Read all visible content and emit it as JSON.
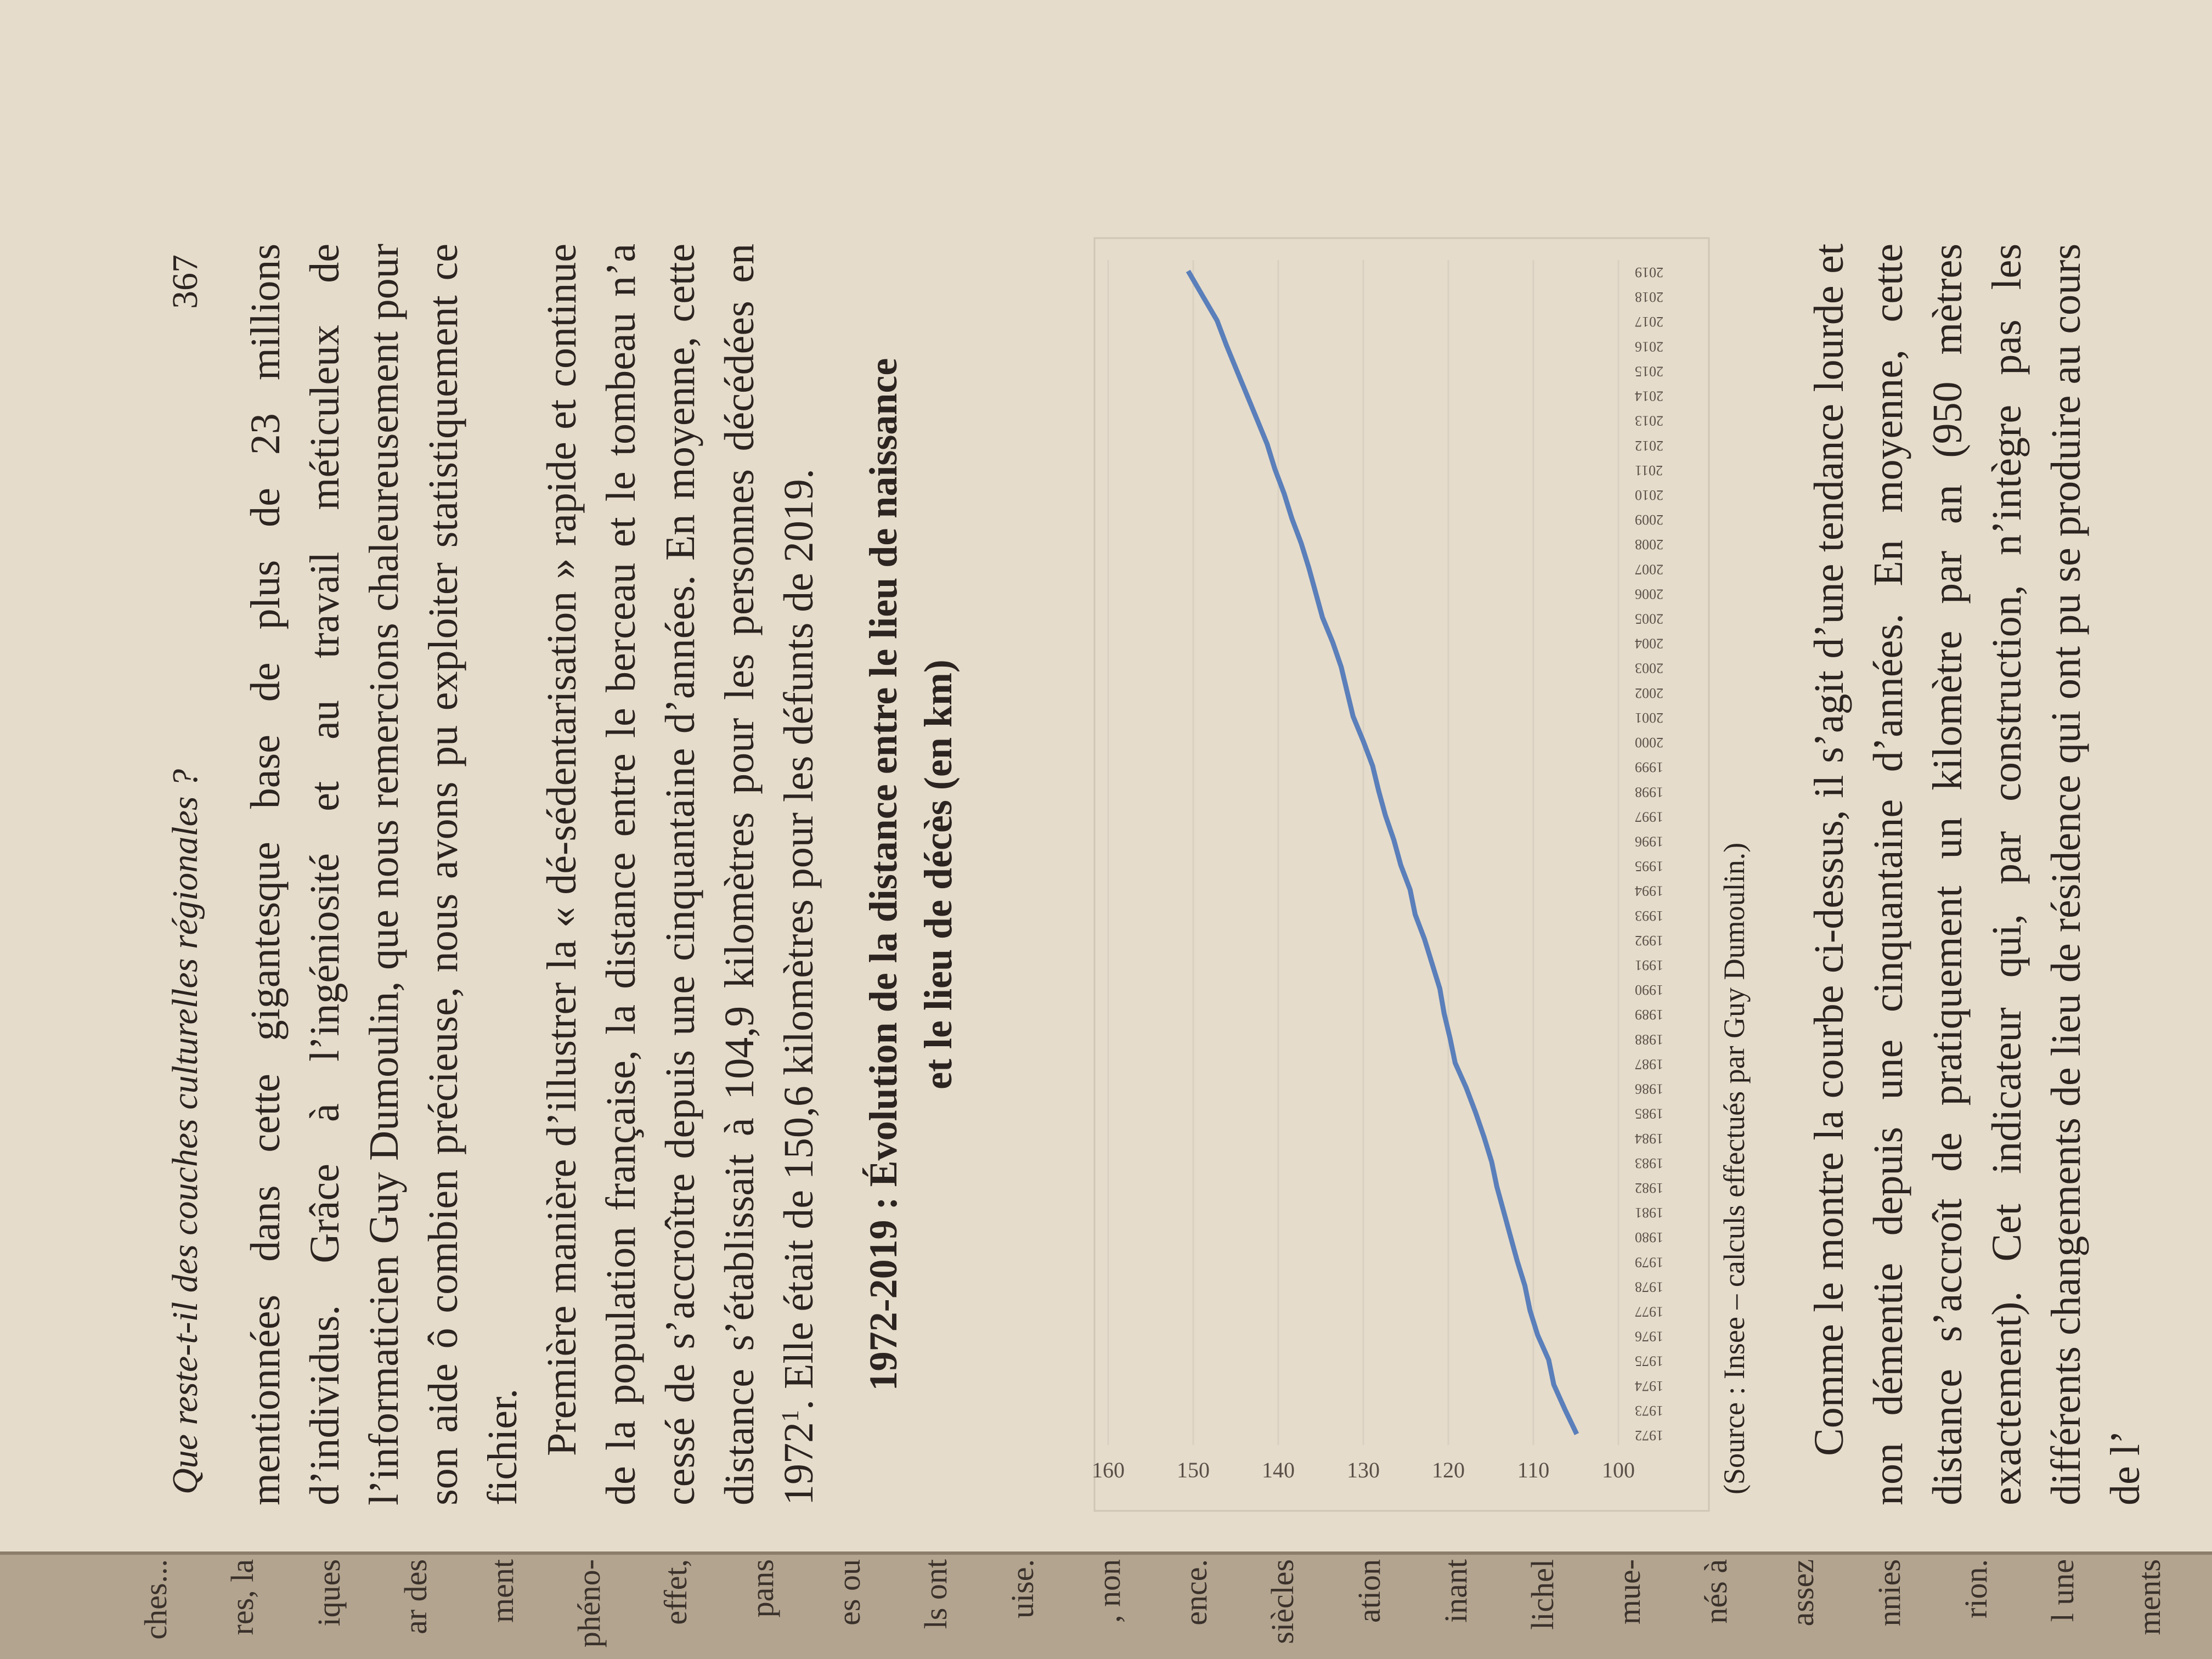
{
  "header": {
    "running_title": "Que reste-t-il des couches culturelles régionales ?",
    "page_number": "367"
  },
  "paragraphs": [
    {
      "text": "mentionnées dans cette gigantesque base de plus de 23 millions d’individus. Grâce à l’ingéniosité et au travail méticuleux de l’informaticien Guy Dumoulin, que nous remercions chaleureusement pour son aide ô combien précieuse, nous avons pu exploiter statistiquement ce fichier."
    },
    {
      "text": "Première manière d’illustrer la « dé-sédentarisation » rapide et continue de la population française, la distance entre le berceau et le tombeau n’a cessé de s’accroître depuis une cinquantaine d’années. En moyenne, cette distance s’établissait à 104,9 kilomètres pour les personnes décédées en 1972",
      "footnote_mark": "1",
      "after": ". Elle était de 150,6 kilomètres pour les défunts de 2019."
    }
  ],
  "chart_data": {
    "type": "line",
    "title": "1972-2019 : Évolution de la distance entre le lieu de naissance et le lieu de décès (en km)",
    "categories": [
      "1972",
      "1973",
      "1974",
      "1975",
      "1976",
      "1977",
      "1978",
      "1979",
      "1980",
      "1981",
      "1982",
      "1983",
      "1984",
      "1985",
      "1986",
      "1987",
      "1988",
      "1989",
      "1990",
      "1991",
      "1992",
      "1993",
      "1994",
      "1995",
      "1996",
      "1997",
      "1998",
      "1999",
      "2000",
      "2001",
      "2002",
      "2003",
      "2004",
      "2005",
      "2006",
      "2007",
      "2008",
      "2009",
      "2010",
      "2011",
      "2012",
      "2013",
      "2014",
      "2015",
      "2016",
      "2017",
      "2018",
      "2019"
    ],
    "values": [
      104.9,
      106.3,
      107.6,
      108.2,
      109.5,
      110.4,
      111.0,
      111.9,
      112.7,
      113.5,
      114.3,
      114.9,
      115.8,
      116.8,
      117.9,
      119.2,
      119.8,
      120.5,
      121.0,
      121.9,
      122.8,
      123.9,
      124.5,
      125.6,
      126.4,
      127.4,
      128.2,
      128.9,
      130.0,
      131.2,
      131.9,
      132.6,
      133.6,
      134.8,
      135.6,
      136.4,
      137.3,
      138.4,
      139.3,
      140.4,
      141.3,
      142.5,
      143.7,
      144.9,
      146.1,
      147.2,
      148.9,
      150.6
    ],
    "color": "#5a7fba",
    "ylim": [
      100,
      160
    ],
    "yticks": [
      100,
      110,
      120,
      130,
      140,
      150,
      160
    ],
    "grid": true
  },
  "source": "(Source : Insee – calculs effectués par Guy Dumoulin.)",
  "after_paragraph": "Comme le montre la courbe ci-dessus, il s’agit d’une tendance lourde et non démentie depuis une cinquantaine d’années. En moyenne, cette distance s’accroît de pratiquement un kilomètre par an (950 mètres exactement). Cet indicateur qui, par construction, n’intègre pas les différents changements de lieu de résidence qui ont pu se produire au cours de l’",
  "facing_page": {
    "fragments": [
      "ches...",
      "res, la",
      "iques",
      "ar des",
      "ment",
      "phéno-",
      "effet,",
      "pans",
      "es ou",
      "ls ont",
      "uise.",
      ", non",
      "ence.",
      "siècles",
      "ation",
      "inant",
      "lichel",
      "mue-",
      "nés à",
      "assez",
      "nnies",
      "rion.",
      "l une",
      "ments"
    ]
  }
}
